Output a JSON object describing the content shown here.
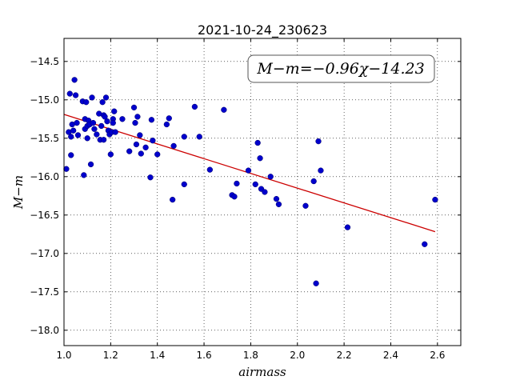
{
  "chart_data": {
    "type": "scatter",
    "title": "2021-10-24_230623",
    "xlabel": "airmass",
    "ylabel": "M−m",
    "xlim": [
      1.0,
      2.7
    ],
    "ylim": [
      -18.2,
      -14.2
    ],
    "x_ticks": [
      1.0,
      1.2,
      1.4,
      1.6,
      1.8,
      2.0,
      2.2,
      2.4,
      2.6
    ],
    "x_tick_labels": [
      "1.0",
      "1.2",
      "1.4",
      "1.6",
      "1.8",
      "2.0",
      "2.2",
      "2.4",
      "2.6"
    ],
    "y_ticks": [
      -14.5,
      -15.0,
      -15.5,
      -16.0,
      -16.5,
      -17.0,
      -17.5,
      -18.0
    ],
    "y_tick_labels": [
      "−14.5",
      "−15.0",
      "−15.5",
      "−16.0",
      "−16.5",
      "−17.0",
      "−17.5",
      "−18.0"
    ],
    "grid": true,
    "annotation": "M−m=−0.96χ−14.23",
    "point_color": "#0000cc",
    "fit_color": "#cc0000",
    "fit_line": {
      "slope": -0.96,
      "intercept": -14.23,
      "x_start": 1.0,
      "x_end": 2.59
    },
    "points": [
      [
        1.01,
        -15.9
      ],
      [
        1.02,
        -15.42
      ],
      [
        1.025,
        -14.92
      ],
      [
        1.03,
        -15.48
      ],
      [
        1.03,
        -15.72
      ],
      [
        1.035,
        -15.32
      ],
      [
        1.04,
        -15.4
      ],
      [
        1.045,
        -14.74
      ],
      [
        1.05,
        -14.94
      ],
      [
        1.055,
        -15.3
      ],
      [
        1.06,
        -15.46
      ],
      [
        1.08,
        -15.02
      ],
      [
        1.085,
        -15.98
      ],
      [
        1.09,
        -15.25
      ],
      [
        1.09,
        -15.38
      ],
      [
        1.095,
        -15.03
      ],
      [
        1.1,
        -15.34
      ],
      [
        1.1,
        -15.5
      ],
      [
        1.105,
        -15.27
      ],
      [
        1.11,
        -15.32
      ],
      [
        1.115,
        -15.84
      ],
      [
        1.12,
        -14.97
      ],
      [
        1.125,
        -15.3
      ],
      [
        1.13,
        -15.38
      ],
      [
        1.14,
        -15.45
      ],
      [
        1.15,
        -15.18
      ],
      [
        1.155,
        -15.52
      ],
      [
        1.16,
        -15.34
      ],
      [
        1.165,
        -15.03
      ],
      [
        1.17,
        -15.52
      ],
      [
        1.17,
        -15.2
      ],
      [
        1.175,
        -15.22
      ],
      [
        1.18,
        -14.97
      ],
      [
        1.185,
        -15.28
      ],
      [
        1.19,
        -15.4
      ],
      [
        1.195,
        -15.45
      ],
      [
        1.2,
        -15.71
      ],
      [
        1.205,
        -15.42
      ],
      [
        1.21,
        -15.25
      ],
      [
        1.21,
        -15.3
      ],
      [
        1.215,
        -15.15
      ],
      [
        1.22,
        -15.42
      ],
      [
        1.25,
        -15.25
      ],
      [
        1.28,
        -15.67
      ],
      [
        1.3,
        -15.1
      ],
      [
        1.305,
        -15.3
      ],
      [
        1.31,
        -15.58
      ],
      [
        1.315,
        -15.22
      ],
      [
        1.325,
        -15.46
      ],
      [
        1.33,
        -15.7
      ],
      [
        1.35,
        -15.62
      ],
      [
        1.37,
        -16.01
      ],
      [
        1.375,
        -15.26
      ],
      [
        1.38,
        -15.53
      ],
      [
        1.4,
        -15.71
      ],
      [
        1.44,
        -15.32
      ],
      [
        1.45,
        -15.24
      ],
      [
        1.465,
        -16.3
      ],
      [
        1.47,
        -15.6
      ],
      [
        1.515,
        -15.48
      ],
      [
        1.515,
        -16.1
      ],
      [
        1.56,
        -15.09
      ],
      [
        1.58,
        -15.48
      ],
      [
        1.625,
        -15.91
      ],
      [
        1.685,
        -15.13
      ],
      [
        1.72,
        -16.24
      ],
      [
        1.73,
        -16.26
      ],
      [
        1.74,
        -16.09
      ],
      [
        1.79,
        -15.92
      ],
      [
        1.82,
        -16.1
      ],
      [
        1.83,
        -15.56
      ],
      [
        1.84,
        -15.76
      ],
      [
        1.845,
        -16.16
      ],
      [
        1.86,
        -16.2
      ],
      [
        1.885,
        -16.0
      ],
      [
        1.91,
        -16.29
      ],
      [
        1.92,
        -16.36
      ],
      [
        2.035,
        -16.38
      ],
      [
        2.07,
        -16.06
      ],
      [
        2.08,
        -17.39
      ],
      [
        2.09,
        -15.54
      ],
      [
        2.1,
        -15.92
      ],
      [
        2.215,
        -16.66
      ],
      [
        2.545,
        -16.88
      ],
      [
        2.59,
        -16.3
      ]
    ]
  }
}
